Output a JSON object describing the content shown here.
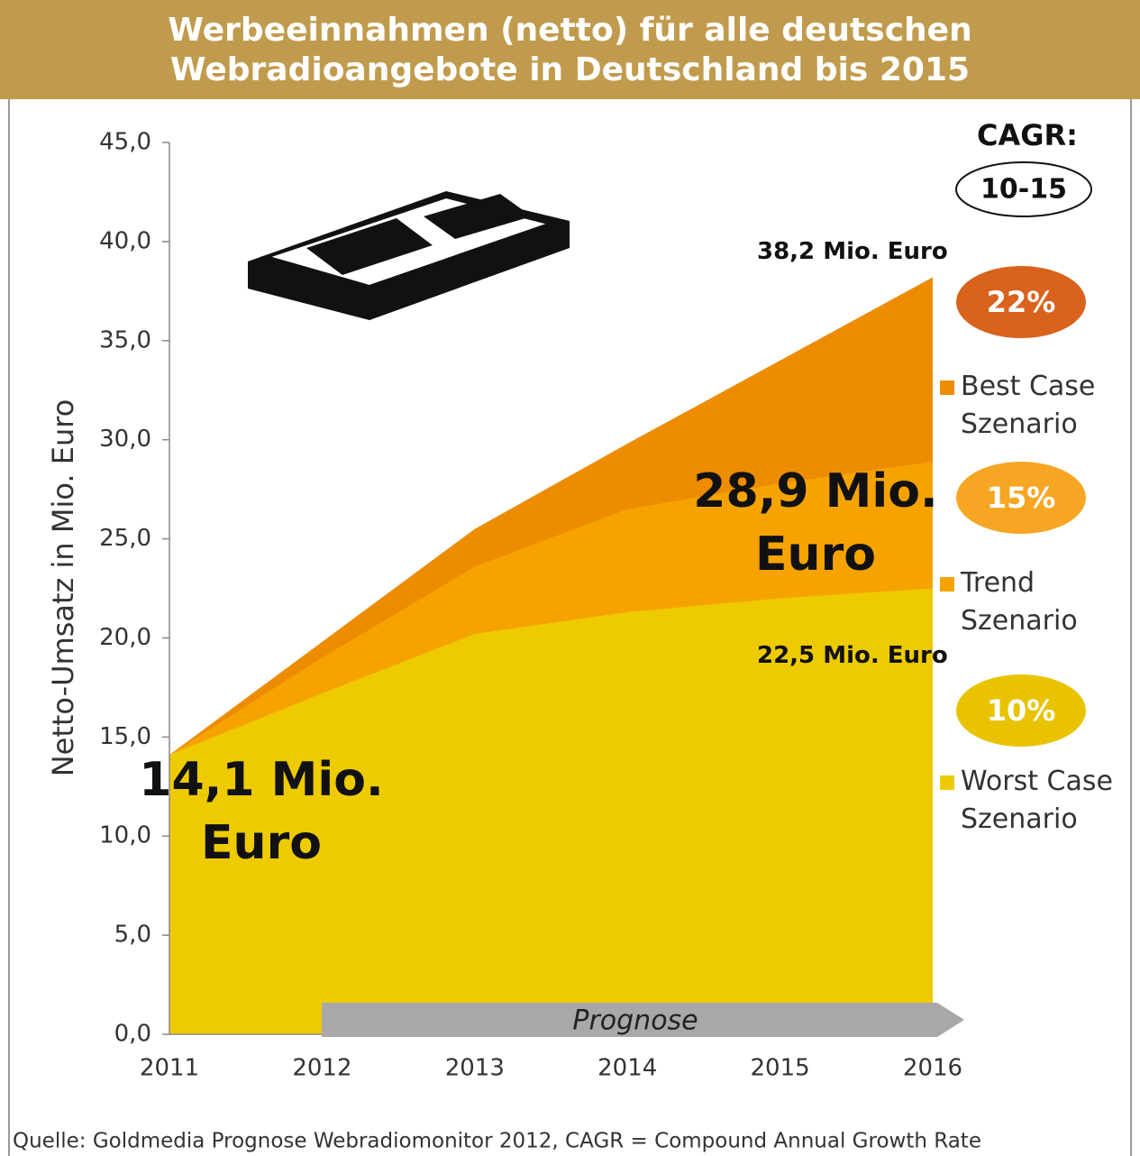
{
  "chart_data": {
    "type": "area",
    "title": "Werbeeinnahmen (netto) für alle deutschen Webradioangebote in Deutschland bis 2015",
    "ylabel": "Netto-Umsatz in Mio. Euro",
    "categories": [
      "2011",
      "2012",
      "2013",
      "2014",
      "2015",
      "2016"
    ],
    "series": [
      {
        "name": "Best Case Szenario",
        "color": "#ee8c00",
        "values": [
          14.1,
          19.8,
          25.5,
          29.8,
          34.0,
          38.2
        ],
        "cagr": "22%",
        "cagr_color": "#d9621c"
      },
      {
        "name": "Trend Szenario",
        "color": "#f6a300",
        "values": [
          14.1,
          19.0,
          23.6,
          26.5,
          27.8,
          28.9
        ],
        "cagr": "15%",
        "cagr_color": "#f6a623"
      },
      {
        "name": "Worst Case Szenario",
        "color": "#eecb00",
        "values": [
          14.1,
          17.2,
          20.2,
          21.3,
          22.0,
          22.5
        ],
        "cagr": "10%",
        "cagr_color": "#e9c300"
      }
    ],
    "ylim": [
      0,
      45
    ],
    "yticks": [
      {
        "value": 0,
        "label": "0,0"
      },
      {
        "value": 5,
        "label": "5,0"
      },
      {
        "value": 10,
        "label": "10,0"
      },
      {
        "value": 15,
        "label": "15,0"
      },
      {
        "value": 20,
        "label": "20,0"
      },
      {
        "value": 25,
        "label": "25,0"
      },
      {
        "value": 30,
        "label": "30,0"
      },
      {
        "value": 35,
        "label": "35,0"
      },
      {
        "value": 40,
        "label": "40,0"
      },
      {
        "value": 45,
        "label": "45,0"
      }
    ],
    "cagr_title": "CAGR:",
    "cagr_period": "10-15",
    "arrow_label": "Prognose",
    "annotations": [
      "14,1 Mio. Euro",
      "28,9 Mio. Euro",
      "38,2 Mio. Euro",
      "22,5 Mio. Euro"
    ],
    "source": "Quelle: Goldmedia Prognose Webradiomonitor 2012, CAGR = Compound Annual Growth Rate"
  }
}
